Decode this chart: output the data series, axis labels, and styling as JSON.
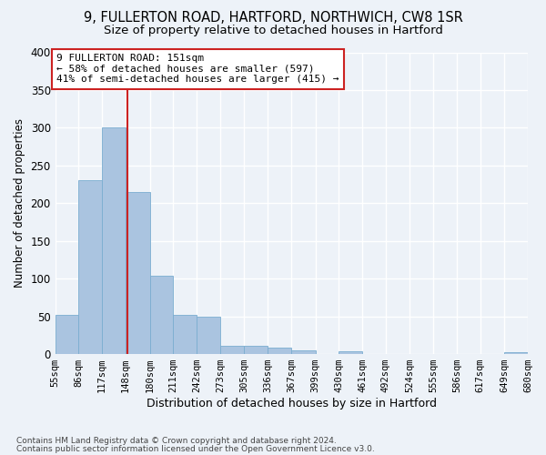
{
  "title1": "9, FULLERTON ROAD, HARTFORD, NORTHWICH, CW8 1SR",
  "title2": "Size of property relative to detached houses in Hartford",
  "xlabel": "Distribution of detached houses by size in Hartford",
  "ylabel": "Number of detached properties",
  "footnote1": "Contains HM Land Registry data © Crown copyright and database right 2024.",
  "footnote2": "Contains public sector information licensed under the Open Government Licence v3.0.",
  "bar_left_edges": [
    55,
    86,
    117,
    148,
    180,
    211,
    242,
    273,
    305,
    336,
    367,
    399,
    430,
    461,
    492,
    524,
    555,
    586,
    617,
    649
  ],
  "bar_widths": [
    31,
    31,
    31,
    32,
    31,
    31,
    31,
    32,
    31,
    31,
    32,
    31,
    31,
    31,
    32,
    31,
    31,
    31,
    32,
    31
  ],
  "bar_heights": [
    52,
    231,
    300,
    215,
    104,
    52,
    49,
    11,
    11,
    8,
    5,
    0,
    4,
    0,
    0,
    0,
    0,
    0,
    0,
    2
  ],
  "bar_color": "#aac4e0",
  "bar_edge_color": "#7aadd0",
  "vline_x": 151,
  "vline_color": "#cc2222",
  "annotation_line1": "9 FULLERTON ROAD: 151sqm",
  "annotation_line2": "← 58% of detached houses are smaller (597)",
  "annotation_line3": "41% of semi-detached houses are larger (415) →",
  "annotation_box_color": "#ffffff",
  "annotation_box_edge": "#cc2222",
  "ylim": [
    0,
    400
  ],
  "yticks": [
    0,
    50,
    100,
    150,
    200,
    250,
    300,
    350,
    400
  ],
  "tick_labels": [
    "55sqm",
    "86sqm",
    "117sqm",
    "148sqm",
    "180sqm",
    "211sqm",
    "242sqm",
    "273sqm",
    "305sqm",
    "336sqm",
    "367sqm",
    "399sqm",
    "430sqm",
    "461sqm",
    "492sqm",
    "524sqm",
    "555sqm",
    "586sqm",
    "617sqm",
    "649sqm",
    "680sqm"
  ],
  "bg_color": "#edf2f8",
  "plot_bg_color": "#edf2f8",
  "grid_color": "#ffffff",
  "title1_fontsize": 10.5,
  "title2_fontsize": 9.5,
  "xlabel_fontsize": 9,
  "ylabel_fontsize": 8.5,
  "tick_fontsize": 7.5,
  "annot_fontsize": 8
}
